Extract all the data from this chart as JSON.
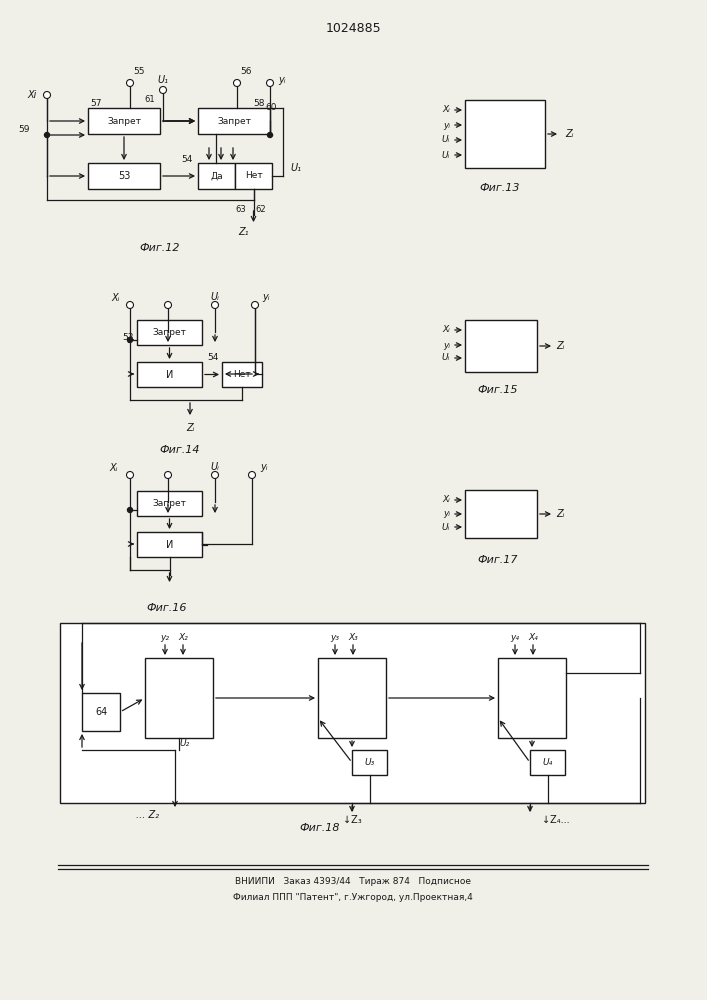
{
  "title": "1024885",
  "footer_line1": "ВНИИПИ   Заказ 4393/44   Тираж 874   Подписное",
  "footer_line2": "Филиал ППП \"Патент\", г.Ужгород, ул.Проектная,4",
  "fig12_caption": "Фиг.12",
  "fig13_caption": "Фиг.13",
  "fig14_caption": "Фиг.14",
  "fig15_caption": "Фиг.15",
  "fig16_caption": "Фиг.16",
  "fig17_caption": "Фиг.17",
  "fig18_caption": "Фиг.18",
  "bg_color": "#f0efe8",
  "line_color": "#1a1a1a"
}
